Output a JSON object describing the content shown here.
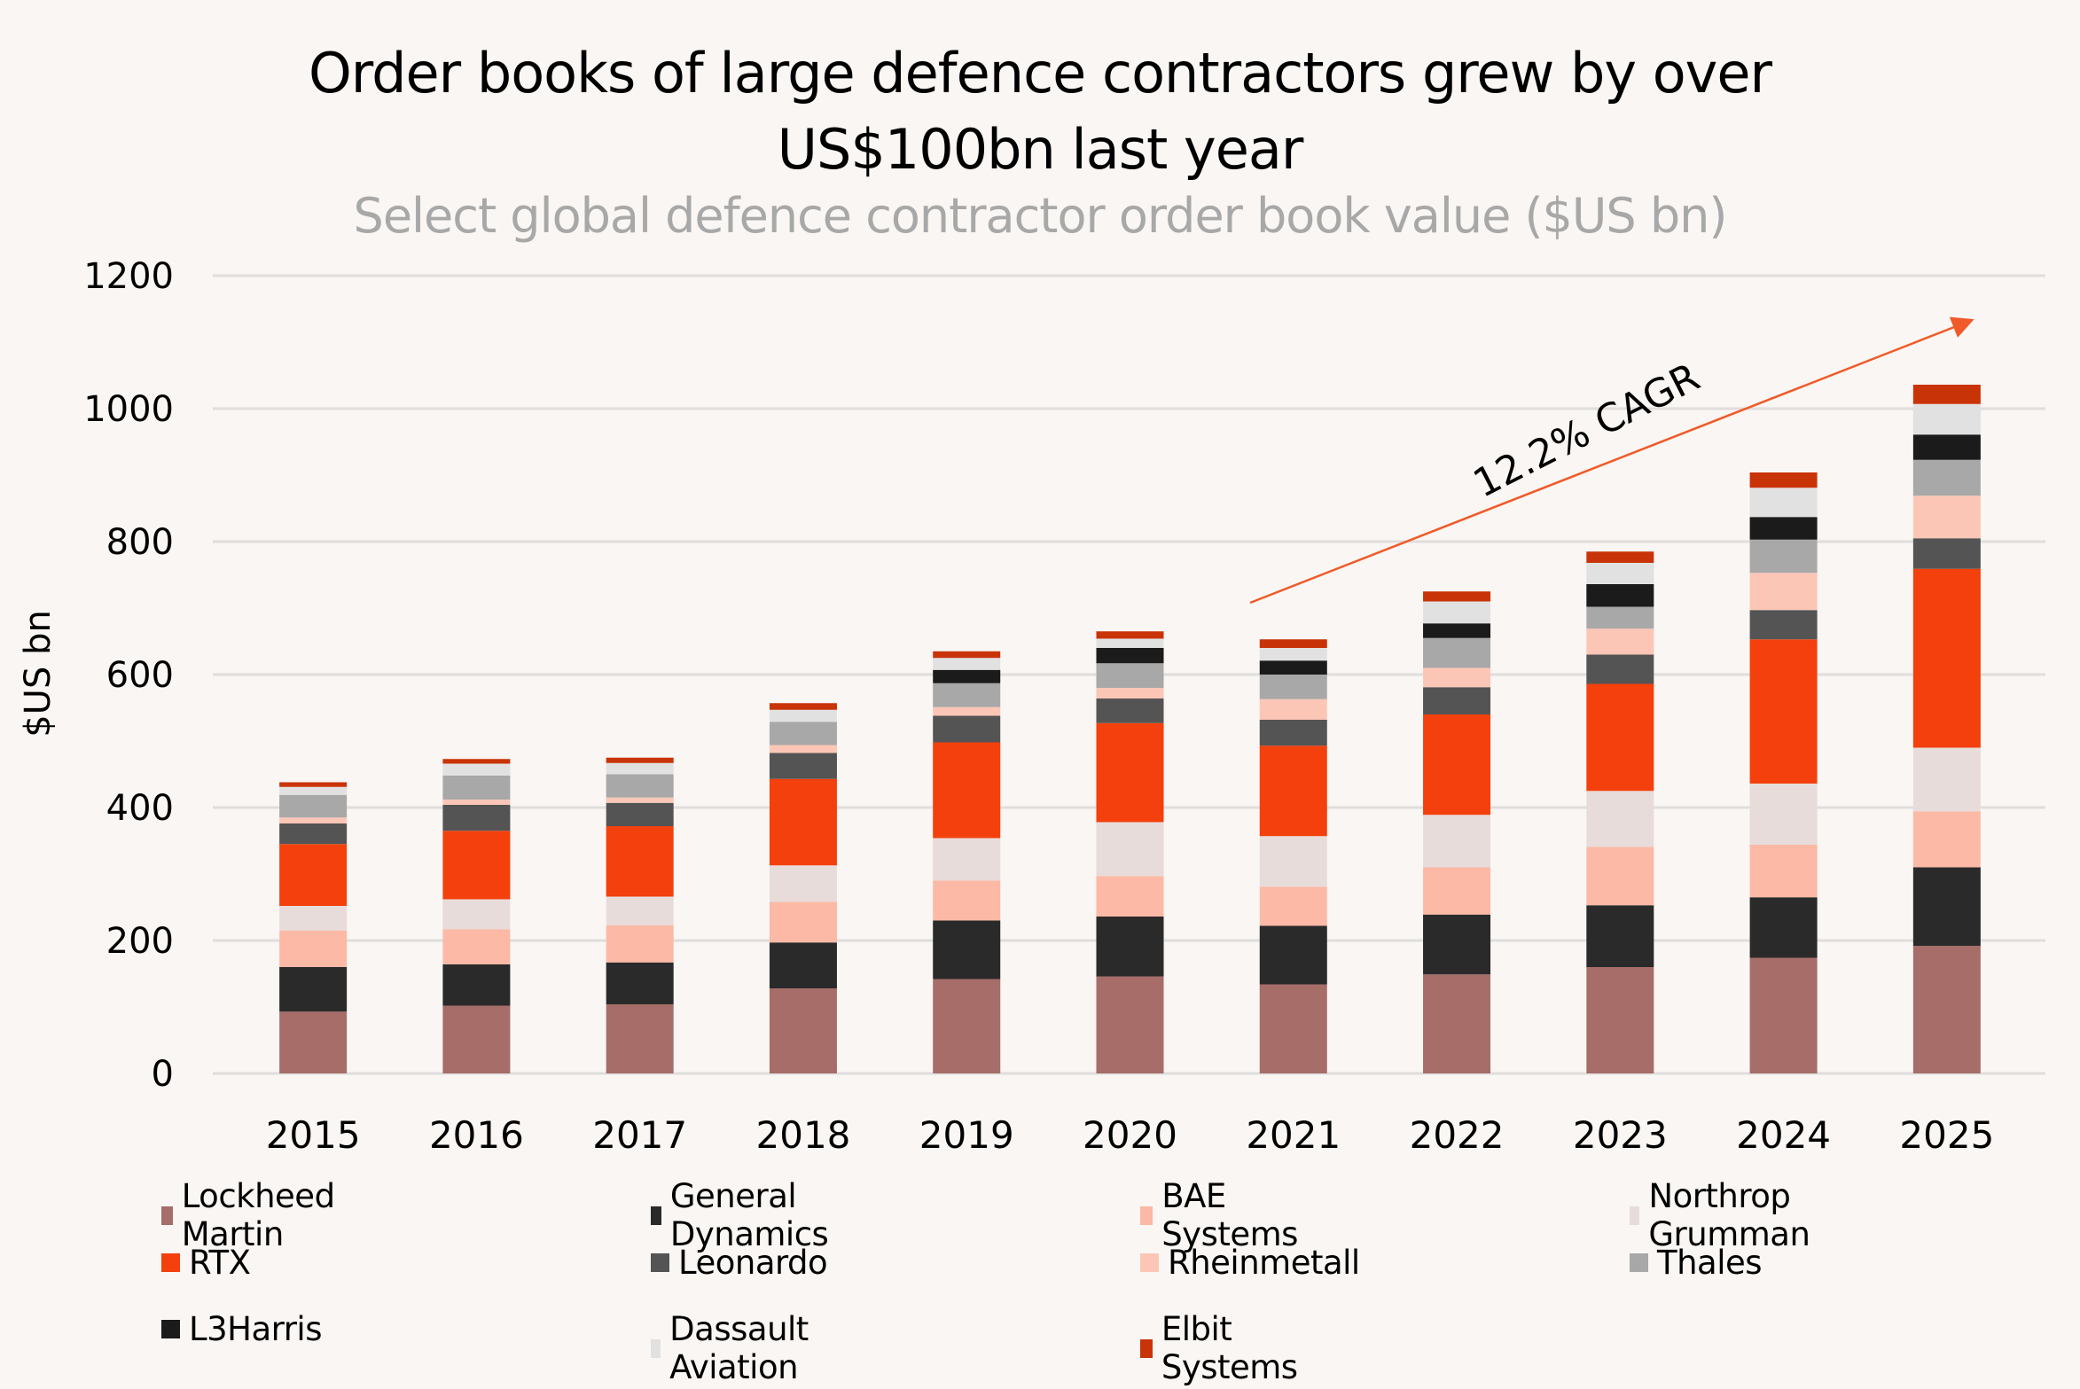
{
  "header": {
    "title_line1": "Order books of large defence contractors grew by over",
    "title_line2": "US$100bn last year",
    "subtitle": "Select global defence contractor order book value ($US bn)"
  },
  "chart_data": {
    "type": "bar",
    "stacked": true,
    "title": "Order books of large defence contractors grew by over US$100bn last year",
    "subtitle": "Select global defence contractor order book value ($US bn)",
    "xlabel": "",
    "ylabel": "$US bn",
    "ylim": [
      0,
      1200
    ],
    "yticks": [
      0,
      200,
      400,
      600,
      800,
      1000,
      1200
    ],
    "grid": true,
    "legend_position": "bottom",
    "categories": [
      "2015",
      "2016",
      "2017",
      "2018",
      "2019",
      "2020",
      "2021",
      "2022",
      "2023",
      "2024",
      "2025"
    ],
    "series": [
      {
        "name": "Lockheed Martin",
        "color": "#a66d69",
        "values": [
          93,
          102,
          104,
          128,
          142,
          146,
          134,
          149,
          160,
          174,
          192
        ]
      },
      {
        "name": "General Dynamics",
        "color": "#2a2a2a",
        "values": [
          67,
          62,
          63,
          69,
          88,
          90,
          88,
          90,
          93,
          91,
          118
        ]
      },
      {
        "name": "BAE Systems",
        "color": "#fbb9a6",
        "values": [
          55,
          53,
          56,
          61,
          60,
          61,
          59,
          71,
          88,
          79,
          84
        ]
      },
      {
        "name": "Northrop Grumman",
        "color": "#e8dcdb",
        "values": [
          37,
          45,
          43,
          55,
          64,
          81,
          76,
          79,
          84,
          92,
          96
        ]
      },
      {
        "name": "RTX",
        "color": "#f3400c",
        "values": [
          93,
          103,
          106,
          130,
          144,
          149,
          136,
          151,
          161,
          217,
          269
        ]
      },
      {
        "name": "Leonardo",
        "color": "#545454",
        "values": [
          31,
          39,
          35,
          39,
          40,
          37,
          39,
          41,
          44,
          44,
          46
        ]
      },
      {
        "name": "Rheinmetall",
        "color": "#fcc6b7",
        "values": [
          9,
          8,
          8,
          12,
          13,
          16,
          31,
          29,
          39,
          56,
          64
        ]
      },
      {
        "name": "Thales",
        "color": "#a8a8a8",
        "values": [
          34,
          36,
          35,
          35,
          36,
          37,
          37,
          45,
          33,
          50,
          54
        ]
      },
      {
        "name": "L3Harris",
        "color": "#1b1b1b",
        "values": [
          0,
          0,
          0,
          0,
          20,
          23,
          21,
          22,
          34,
          34,
          38
        ]
      },
      {
        "name": "Dassault Aviation",
        "color": "#e1e1e1",
        "values": [
          12,
          18,
          17,
          18,
          18,
          14,
          19,
          33,
          32,
          44,
          46
        ]
      },
      {
        "name": "Elbit Systems",
        "color": "#c93308",
        "values": [
          7,
          7,
          8,
          10,
          10,
          11,
          13,
          15,
          17,
          23,
          29
        ]
      }
    ],
    "annotations": [
      {
        "text": "12.2% CAGR",
        "type": "arrow",
        "color": "#f05a28",
        "from_category": "2021",
        "to_category": "2025"
      }
    ]
  },
  "legend": {
    "items": [
      {
        "label": "Lockheed Martin",
        "color": "#a66d69"
      },
      {
        "label": "General Dynamics",
        "color": "#2a2a2a"
      },
      {
        "label": "BAE Systems",
        "color": "#fbb9a6"
      },
      {
        "label": "Northrop Grumman",
        "color": "#e8dcdb"
      },
      {
        "label": "RTX",
        "color": "#f3400c"
      },
      {
        "label": "Leonardo",
        "color": "#545454"
      },
      {
        "label": "Rheinmetall",
        "color": "#fcc6b7"
      },
      {
        "label": "Thales",
        "color": "#a8a8a8"
      },
      {
        "label": "L3Harris",
        "color": "#1b1b1b"
      },
      {
        "label": "Dassault Aviation",
        "color": "#e1e1e1"
      },
      {
        "label": "Elbit Systems",
        "color": "#c93308"
      }
    ]
  },
  "colors": {
    "background": "#f9f6f3",
    "gridline": "#e0dedc",
    "subtitle": "#a8a8a8",
    "annotation_arrow": "#f05a28"
  }
}
